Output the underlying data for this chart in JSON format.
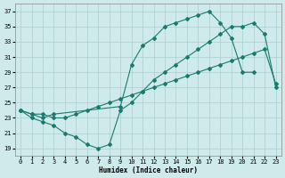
{
  "xlabel": "Humidex (Indice chaleur)",
  "xlim": [
    -0.5,
    23.5
  ],
  "ylim": [
    18,
    38
  ],
  "yticks": [
    19,
    21,
    23,
    25,
    27,
    29,
    31,
    33,
    35,
    37
  ],
  "xticks": [
    0,
    1,
    2,
    3,
    4,
    5,
    6,
    7,
    8,
    9,
    10,
    11,
    12,
    13,
    14,
    15,
    16,
    17,
    18,
    19,
    20,
    21,
    22,
    23
  ],
  "bg_color": "#ceeaea",
  "line_color": "#1a7a6e",
  "grid_color": "#aacece",
  "line1_x": [
    0,
    1,
    2,
    3,
    4,
    5,
    6,
    7,
    8,
    9,
    10,
    11,
    12,
    13,
    14,
    15,
    16,
    17,
    18,
    19,
    20,
    21,
    22,
    23
  ],
  "line1_y": [
    24,
    23,
    22.5,
    22,
    21,
    20.5,
    19.5,
    19,
    19.5,
    24,
    25,
    26.5,
    28,
    29,
    30,
    31,
    32,
    33,
    34,
    35,
    35,
    35.5,
    34,
    27
  ],
  "line2_x": [
    0,
    1,
    2,
    3,
    9,
    10,
    11,
    12,
    13,
    14,
    15,
    16,
    17,
    18,
    19,
    20,
    21
  ],
  "line2_y": [
    24,
    23.5,
    23,
    23.5,
    24.5,
    30,
    32.5,
    33.5,
    35,
    35.5,
    36,
    36.5,
    37,
    35.5,
    33.5,
    29,
    29
  ],
  "line3_x": [
    0,
    1,
    2,
    3,
    4,
    5,
    6,
    7,
    8,
    9,
    10,
    11,
    12,
    13,
    14,
    15,
    16,
    17,
    18,
    19,
    20,
    21,
    22,
    23
  ],
  "line3_y": [
    24,
    23.5,
    23.5,
    23,
    23,
    23.5,
    24,
    24.5,
    25,
    25.5,
    26,
    26.5,
    27,
    27.5,
    28,
    28.5,
    29,
    29.5,
    30,
    30.5,
    31,
    31.5,
    32,
    27.5
  ],
  "figsize": [
    3.2,
    2.0
  ],
  "dpi": 100
}
